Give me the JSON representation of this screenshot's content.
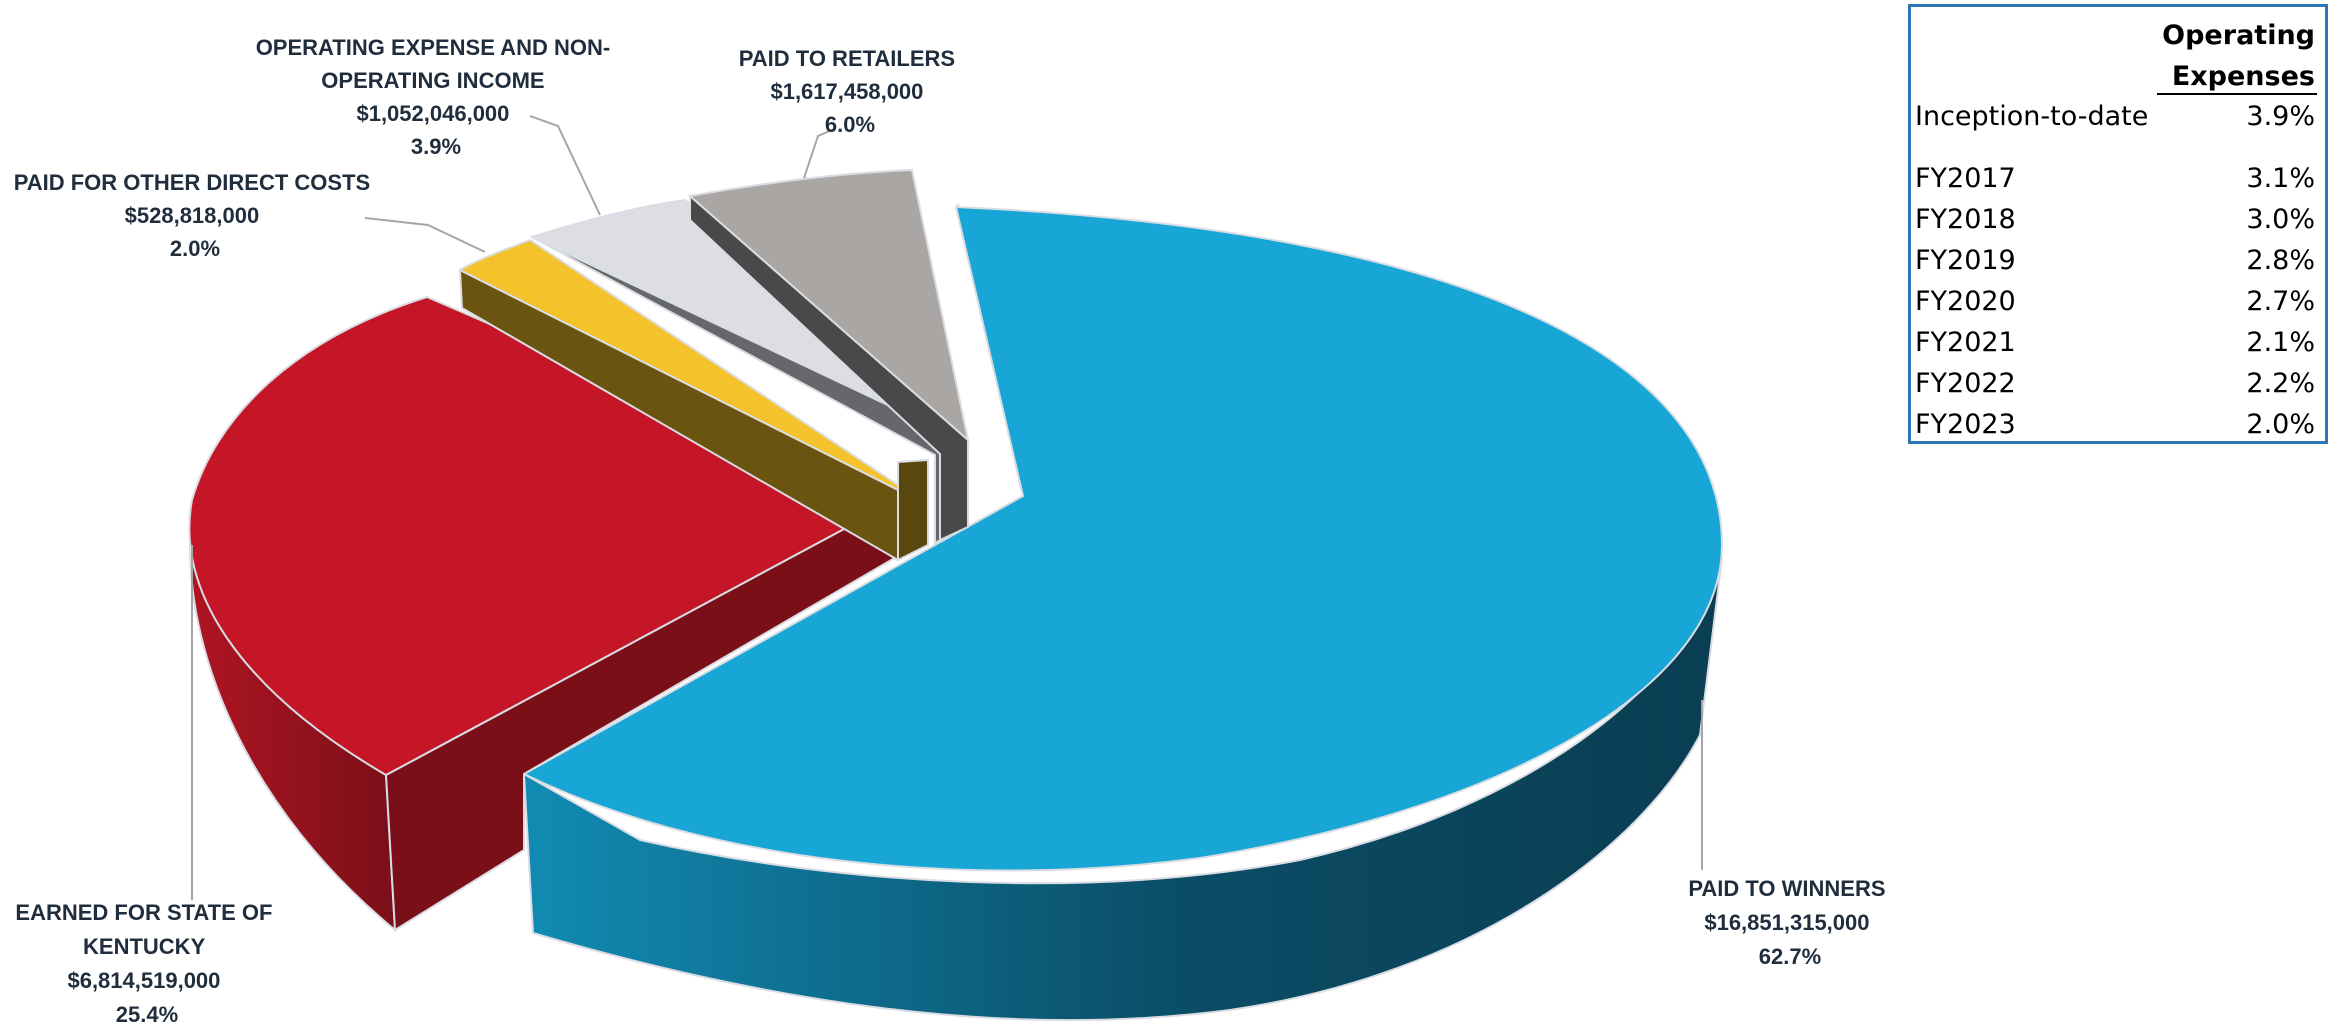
{
  "chart_data": {
    "type": "pie",
    "style": "3d-exploded",
    "slices": [
      {
        "name": "PAID TO WINNERS",
        "amount": "$16,851,315,000",
        "percent": "62.7%",
        "value": 62.7,
        "color": "#18a6d6",
        "side_color": "#0e5a75"
      },
      {
        "name": "EARNED FOR STATE OF KENTUCKY",
        "amount": "$6,814,519,000",
        "percent": "25.4%",
        "value": 25.4,
        "color": "#c41627",
        "side_color": "#7b0e19"
      },
      {
        "name": "PAID FOR OTHER DIRECT COSTS",
        "amount": "$528,818,000",
        "percent": "2.0%",
        "value": 2.0,
        "color": "#f4c22b",
        "side_color": "#6b5410"
      },
      {
        "name": "OPERATING EXPENSE AND NON-OPERATING INCOME",
        "amount": "$1,052,046,000",
        "percent": "3.9%",
        "value": 3.9,
        "color": "#dcdee4",
        "side_color": "#6e6f73"
      },
      {
        "name": "PAID TO RETAILERS",
        "amount": "$1,617,458,000",
        "percent": "6.0%",
        "value": 6.0,
        "color": "#aaa6a3",
        "side_color": "#4a4949"
      }
    ],
    "labels": {
      "winners": [
        "PAID TO WINNERS",
        "$16,851,315,000",
        "62.7%"
      ],
      "state": [
        "EARNED FOR STATE OF",
        "KENTUCKY",
        "$6,814,519,000",
        "25.4%"
      ],
      "direct": [
        "PAID FOR OTHER DIRECT COSTS",
        "$528,818,000",
        "2.0%"
      ],
      "opex": [
        "OPERATING EXPENSE AND NON-",
        "OPERATING INCOME",
        "$1,052,046,000",
        "3.9%"
      ],
      "retailers": [
        "PAID TO RETAILERS",
        "$1,617,458,000",
        "6.0%"
      ]
    }
  },
  "table": {
    "header_line1": "Operating",
    "header_line2": "Expenses",
    "rows": [
      {
        "label": "Inception-to-date",
        "value": "3.9%"
      },
      {
        "label": "FY2017",
        "value": "3.1%"
      },
      {
        "label": "FY2018",
        "value": "3.0%"
      },
      {
        "label": "FY2019",
        "value": "2.8%"
      },
      {
        "label": "FY2020",
        "value": "2.7%"
      },
      {
        "label": "FY2021",
        "value": "2.1%"
      },
      {
        "label": "FY2022",
        "value": "2.2%"
      },
      {
        "label": "FY2023",
        "value": "2.0%"
      }
    ]
  }
}
